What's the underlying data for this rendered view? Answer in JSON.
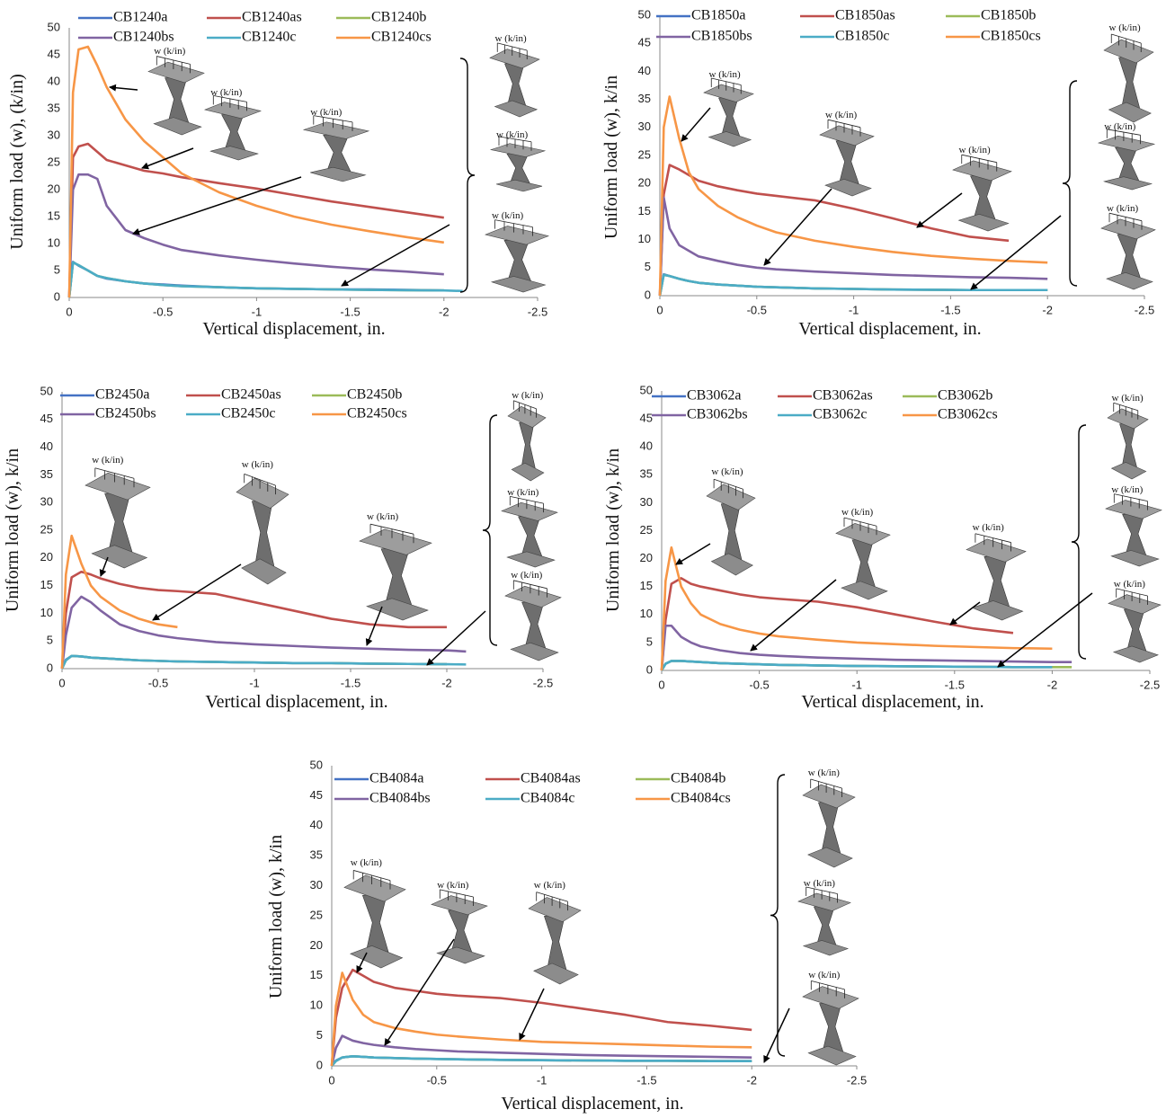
{
  "chart_data": [
    {
      "type": "line",
      "y_label": "Uniform load (w), (k/in)",
      "x_label": "Vertical displacement, in.",
      "x": [
        0,
        -0.02,
        -0.05,
        -0.1,
        -0.15,
        -0.2,
        -0.3,
        -0.4,
        -0.5,
        -0.6,
        -0.8,
        -1,
        -1.2,
        -1.4,
        -1.6,
        -1.8,
        -2,
        -2.1
      ],
      "xlim": [
        0,
        -2.5
      ],
      "xticks": [
        0,
        -0.5,
        -1,
        -1.5,
        -2,
        -2.5
      ],
      "ylim": [
        0,
        50
      ],
      "yticks": [
        0,
        5,
        10,
        15,
        20,
        25,
        30,
        35,
        40,
        45,
        50
      ],
      "series": [
        {
          "name": "CB1240a",
          "color": "#4472c4",
          "values": [
            0,
            6.6,
            5.9,
            5,
            4,
            3.5,
            3,
            2.6,
            2.4,
            2.2,
            1.9,
            1.7,
            1.6,
            1.5,
            1.5,
            1.4,
            1.3,
            null
          ]
        },
        {
          "name": "CB1240as",
          "color": "#c0504d",
          "values": [
            0,
            26,
            28,
            28.5,
            27,
            25.5,
            24.5,
            23.5,
            23,
            22.3,
            21.2,
            20.2,
            19,
            17.8,
            16.8,
            15.8,
            14.8,
            null
          ]
        },
        {
          "name": "CB1240b",
          "color": "#9bbb59",
          "values": [
            0,
            6.5,
            6,
            5,
            4,
            3.6,
            3,
            2.6,
            2.3,
            2.1,
            1.9,
            1.7,
            1.6,
            1.5,
            1.4,
            1.35,
            1.3,
            null
          ]
        },
        {
          "name": "CB1240bs",
          "color": "#8064a2",
          "values": [
            0,
            20,
            22.8,
            22.8,
            22,
            17,
            12.5,
            11,
            9.8,
            8.8,
            7.8,
            7,
            6.3,
            5.7,
            5.2,
            4.8,
            4.3,
            null
          ]
        },
        {
          "name": "CB1240c",
          "color": "#4bacc6",
          "values": [
            0,
            6.5,
            6,
            5,
            4,
            3.6,
            3,
            2.6,
            2.3,
            2.1,
            1.9,
            1.7,
            1.6,
            1.5,
            1.4,
            1.35,
            1.3,
            1.2
          ]
        },
        {
          "name": "CB1240cs",
          "color": "#f79646",
          "values": [
            0,
            38,
            46,
            46.5,
            43,
            39,
            33,
            29,
            26,
            23,
            19.5,
            17,
            15,
            13.5,
            12.3,
            11.2,
            10.2,
            null
          ]
        }
      ],
      "annotations": [
        "w (k/in)",
        "w (k/in)",
        "w (k/in)",
        "w (k/in)",
        "w (k/in)",
        "w (k/in)"
      ]
    },
    {
      "type": "line",
      "y_label": "Uniform load (w), k/in",
      "x_label": "Vertical displacement, in.",
      "x": [
        0,
        -0.02,
        -0.05,
        -0.1,
        -0.15,
        -0.2,
        -0.3,
        -0.4,
        -0.5,
        -0.6,
        -0.8,
        -1,
        -1.2,
        -1.4,
        -1.6,
        -1.8,
        -2,
        -2.1
      ],
      "xlim": [
        0,
        -2.5
      ],
      "xticks": [
        0,
        -0.5,
        -1,
        -1.5,
        -2,
        -2.5
      ],
      "ylim": [
        0,
        50
      ],
      "yticks": [
        0,
        5,
        10,
        15,
        20,
        25,
        30,
        35,
        40,
        45,
        50
      ],
      "series": [
        {
          "name": "CB1850a",
          "color": "#4472c4",
          "values": [
            0,
            3.8,
            3.5,
            3,
            2.6,
            2.3,
            2,
            1.8,
            1.6,
            1.5,
            1.3,
            1.2,
            1.1,
            1.05,
            1,
            1,
            1,
            null
          ]
        },
        {
          "name": "CB1850as",
          "color": "#c0504d",
          "values": [
            0,
            18,
            23.3,
            22.5,
            21.5,
            20.5,
            19.5,
            18.8,
            18.2,
            17.8,
            17,
            15.5,
            13.8,
            12,
            10.5,
            9.8,
            null,
            null
          ]
        },
        {
          "name": "CB1850b",
          "color": "#9bbb59",
          "values": [
            0,
            3.7,
            3.5,
            3,
            2.6,
            2.3,
            2,
            1.8,
            1.6,
            1.5,
            1.3,
            1.2,
            1.1,
            1.05,
            1,
            1,
            1,
            null
          ]
        },
        {
          "name": "CB1850bs",
          "color": "#8064a2",
          "values": [
            0,
            17.5,
            12,
            9,
            8,
            7,
            6.2,
            5.5,
            5,
            4.7,
            4.3,
            4,
            3.7,
            3.5,
            3.3,
            3.2,
            3,
            null
          ]
        },
        {
          "name": "CB1850c",
          "color": "#4bacc6",
          "values": [
            0,
            3.7,
            3.5,
            3,
            2.6,
            2.3,
            2,
            1.8,
            1.6,
            1.5,
            1.3,
            1.2,
            1.1,
            1.05,
            1,
            1,
            1,
            null
          ]
        },
        {
          "name": "CB1850cs",
          "color": "#f79646",
          "values": [
            0,
            30,
            35.5,
            28,
            22,
            19,
            16,
            14,
            12.5,
            11.3,
            9.8,
            8.7,
            7.8,
            7.1,
            6.6,
            6.2,
            5.9,
            null
          ]
        }
      ],
      "annotations": [
        "w (k/in)",
        "w (k/in)",
        "w (k/in)",
        "w (k/in)",
        "w (k/in)",
        "w (k/in)"
      ]
    },
    {
      "type": "line",
      "y_label": "Uniform load (w), k/in",
      "x_label": "Vertical displacement, in.",
      "x": [
        0,
        -0.02,
        -0.05,
        -0.1,
        -0.15,
        -0.2,
        -0.3,
        -0.4,
        -0.5,
        -0.6,
        -0.8,
        -1,
        -1.2,
        -1.4,
        -1.6,
        -1.8,
        -2,
        -2.1
      ],
      "xlim": [
        0,
        -2.5
      ],
      "xticks": [
        0,
        -0.5,
        -1,
        -1.5,
        -2,
        -2.5
      ],
      "ylim": [
        0,
        50
      ],
      "yticks": [
        0,
        5,
        10,
        15,
        20,
        25,
        30,
        35,
        40,
        45,
        50
      ],
      "series": [
        {
          "name": "CB2450a",
          "color": "#4472c4",
          "values": [
            0,
            1.6,
            2.3,
            2.2,
            2,
            1.9,
            1.7,
            1.5,
            1.4,
            1.3,
            1.2,
            1.1,
            1,
            1,
            0.9,
            0.85,
            0.8,
            null
          ]
        },
        {
          "name": "CB2450as",
          "color": "#c0504d",
          "values": [
            0,
            10,
            16.5,
            17.5,
            17,
            16.3,
            15.3,
            14.6,
            14.2,
            14,
            13.5,
            12,
            10.5,
            9,
            8,
            7.5,
            7.5,
            null
          ]
        },
        {
          "name": "CB2450b",
          "color": "#9bbb59",
          "values": [
            0,
            1.5,
            2.3,
            2.2,
            2,
            1.9,
            1.7,
            1.5,
            1.4,
            1.3,
            1.2,
            1.1,
            1,
            1,
            0.9,
            0.85,
            0.8,
            null
          ]
        },
        {
          "name": "CB2450bs",
          "color": "#8064a2",
          "values": [
            0,
            6,
            11,
            13,
            12,
            10.5,
            8,
            6.8,
            6,
            5.5,
            4.8,
            4.4,
            4.1,
            3.8,
            3.6,
            3.4,
            3.3,
            3.1
          ]
        },
        {
          "name": "CB2450c",
          "color": "#4bacc6",
          "values": [
            0,
            1.5,
            2.3,
            2.2,
            2,
            1.9,
            1.7,
            1.5,
            1.4,
            1.3,
            1.2,
            1.1,
            1,
            1,
            0.9,
            0.85,
            0.8,
            0.75
          ]
        },
        {
          "name": "CB2450cs",
          "color": "#f79646",
          "values": [
            0,
            17,
            24,
            19,
            15,
            13,
            10.5,
            9,
            8,
            7.5,
            null,
            null,
            null,
            null,
            null,
            null,
            null,
            null
          ]
        }
      ],
      "annotations": [
        "w (k/in)",
        "w (k/in)",
        "w (k/in)",
        "w (k/in)",
        "w (k/in)",
        "w (k/in)"
      ]
    },
    {
      "type": "line",
      "y_label": "Uniform load (w), k/in",
      "x_label": "Vertical displacement, in.",
      "x": [
        0,
        -0.02,
        -0.05,
        -0.1,
        -0.15,
        -0.2,
        -0.3,
        -0.4,
        -0.5,
        -0.6,
        -0.8,
        -1,
        -1.2,
        -1.4,
        -1.6,
        -1.8,
        -2,
        -2.1
      ],
      "xlim": [
        0,
        -2.5
      ],
      "xticks": [
        0,
        -0.5,
        -1,
        -1.5,
        -2,
        -2.5
      ],
      "ylim": [
        0,
        50
      ],
      "yticks": [
        0,
        5,
        10,
        15,
        20,
        25,
        30,
        35,
        40,
        45,
        50
      ],
      "series": [
        {
          "name": "CB3062a",
          "color": "#4472c4",
          "values": [
            0,
            1.2,
            1.7,
            1.7,
            1.6,
            1.5,
            1.3,
            1.2,
            1.1,
            1,
            0.9,
            0.8,
            0.75,
            0.7,
            0.65,
            0.6,
            0.6,
            null
          ]
        },
        {
          "name": "CB3062as",
          "color": "#c0504d",
          "values": [
            0,
            9,
            15.5,
            16.5,
            15.5,
            15,
            14.3,
            13.6,
            13.1,
            12.8,
            12.3,
            11.3,
            10,
            8.7,
            7.5,
            6.7,
            null,
            null
          ]
        },
        {
          "name": "CB3062b",
          "color": "#9bbb59",
          "values": [
            0,
            1.2,
            1.7,
            1.7,
            1.6,
            1.5,
            1.3,
            1.2,
            1.1,
            1,
            0.9,
            0.8,
            0.75,
            0.7,
            0.65,
            0.6,
            0.6,
            0.6
          ]
        },
        {
          "name": "CB3062bs",
          "color": "#8064a2",
          "values": [
            0,
            8,
            8,
            6,
            5,
            4.3,
            3.6,
            3.1,
            2.8,
            2.6,
            2.3,
            2.1,
            1.9,
            1.8,
            1.7,
            1.6,
            1.5,
            1.5
          ]
        },
        {
          "name": "CB3062c",
          "color": "#4bacc6",
          "values": [
            0,
            1.2,
            1.7,
            1.7,
            1.6,
            1.5,
            1.3,
            1.2,
            1.1,
            1,
            0.9,
            0.8,
            0.75,
            0.7,
            0.65,
            0.6,
            0.6,
            null
          ]
        },
        {
          "name": "CB3062cs",
          "color": "#f79646",
          "values": [
            0,
            16,
            22,
            15,
            12,
            10,
            8.3,
            7.3,
            6.6,
            6.1,
            5.5,
            5,
            4.7,
            4.4,
            4.2,
            4,
            3.9,
            null
          ]
        }
      ],
      "annotations": [
        "w (k/in)",
        "w (k/in)",
        "w (k/in)",
        "w (k/in)",
        "w (k/in)",
        "w (k/in)"
      ]
    },
    {
      "type": "line",
      "y_label": "Uniform load (w), k/in",
      "x_label": "Vertical displacement, in.",
      "x": [
        0,
        -0.02,
        -0.05,
        -0.1,
        -0.15,
        -0.2,
        -0.3,
        -0.4,
        -0.5,
        -0.6,
        -0.8,
        -1,
        -1.2,
        -1.4,
        -1.6,
        -1.8,
        -2,
        -2.1
      ],
      "xlim": [
        0,
        -2.5
      ],
      "xticks": [
        0,
        -0.5,
        -1,
        -1.5,
        -2,
        -2.5
      ],
      "ylim": [
        0,
        50
      ],
      "yticks": [
        0,
        5,
        10,
        15,
        20,
        25,
        30,
        35,
        40,
        45,
        50
      ],
      "series": [
        {
          "name": "CB4084a",
          "color": "#4472c4",
          "values": [
            0,
            0.9,
            1.4,
            1.6,
            1.5,
            1.4,
            1.3,
            1.2,
            1.15,
            1.1,
            1,
            0.95,
            0.9,
            0.85,
            0.85,
            0.8,
            0.8,
            null
          ]
        },
        {
          "name": "CB4084as",
          "color": "#c0504d",
          "values": [
            0,
            8,
            13,
            16,
            15,
            14,
            13,
            12.5,
            12,
            11.7,
            11.3,
            10.5,
            9.5,
            8.5,
            7.3,
            6.7,
            6,
            null
          ]
        },
        {
          "name": "CB4084b",
          "color": "#9bbb59",
          "values": [
            0,
            0.8,
            1.4,
            1.6,
            1.5,
            1.4,
            1.3,
            1.2,
            1.15,
            1.1,
            1,
            0.95,
            0.9,
            0.85,
            0.85,
            0.8,
            0.8,
            null
          ]
        },
        {
          "name": "CB4084bs",
          "color": "#8064a2",
          "values": [
            0,
            3,
            5,
            4.2,
            3.8,
            3.5,
            3.1,
            2.8,
            2.6,
            2.4,
            2.2,
            2,
            1.8,
            1.7,
            1.6,
            1.5,
            1.4,
            null
          ]
        },
        {
          "name": "CB4084c",
          "color": "#4bacc6",
          "values": [
            0,
            0.8,
            1.4,
            1.6,
            1.5,
            1.4,
            1.3,
            1.2,
            1.15,
            1.1,
            1,
            0.95,
            0.9,
            0.85,
            0.85,
            0.8,
            0.8,
            null
          ]
        },
        {
          "name": "CB4084cs",
          "color": "#f79646",
          "values": [
            0,
            10,
            15.5,
            11,
            8.5,
            7.3,
            6.3,
            5.7,
            5.2,
            4.9,
            4.4,
            4,
            3.8,
            3.6,
            3.4,
            3.2,
            3.1,
            null
          ]
        }
      ],
      "annotations": [
        "w (k/in)",
        "w (k/in)",
        "w (k/in)",
        "w (k/in)",
        "w (k/in)",
        "w (k/in)"
      ]
    }
  ]
}
